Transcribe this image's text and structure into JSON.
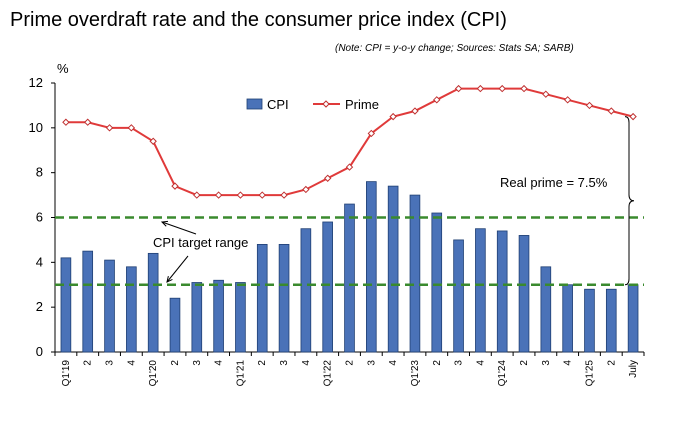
{
  "title": "Prime overdraft rate and the consumer price index (CPI)",
  "note": "(Note: CPI = y-o-y change; Sources: Stats SA; SARB)",
  "chart_data": {
    "type": "bar",
    "ylabel": "%",
    "ylim": [
      0,
      12
    ],
    "yticks": [
      0,
      2,
      4,
      6,
      8,
      10,
      12
    ],
    "grid": false,
    "legend_position": "top",
    "categories": [
      "Q1'19",
      "2",
      "3",
      "4",
      "Q1'20",
      "2",
      "3",
      "4",
      "Q1'21",
      "2",
      "3",
      "4",
      "Q1'22",
      "2",
      "3",
      "4",
      "Q1'23",
      "2",
      "3",
      "4",
      "Q1'24",
      "2",
      "3",
      "4",
      "Q1'25",
      "2",
      "July"
    ],
    "series": [
      {
        "name": "CPI",
        "type": "bar",
        "color": "#4a72b8",
        "values": [
          4.2,
          4.5,
          4.1,
          3.8,
          4.4,
          2.4,
          3.1,
          3.2,
          3.1,
          4.8,
          4.8,
          5.5,
          5.8,
          6.6,
          7.6,
          7.4,
          7.0,
          6.2,
          5.0,
          5.5,
          5.4,
          5.2,
          3.8,
          3.0,
          2.8,
          2.8,
          3.0
        ]
      },
      {
        "name": "Prime",
        "type": "line",
        "color": "#e03a3a",
        "values": [
          10.25,
          10.25,
          10.0,
          10.0,
          9.4,
          7.4,
          7.0,
          7.0,
          7.0,
          7.0,
          7.0,
          7.25,
          7.75,
          8.25,
          9.75,
          10.5,
          10.75,
          11.25,
          11.75,
          11.75,
          11.75,
          11.75,
          11.5,
          11.25,
          11.0,
          10.75,
          10.5
        ]
      }
    ],
    "target_range": {
      "label": "CPI target range",
      "lower": 3,
      "upper": 6,
      "color": "#3a8a2e"
    },
    "annotation": {
      "label": "Real prime = 7.5%",
      "from": 3.0,
      "to": 10.5
    }
  }
}
